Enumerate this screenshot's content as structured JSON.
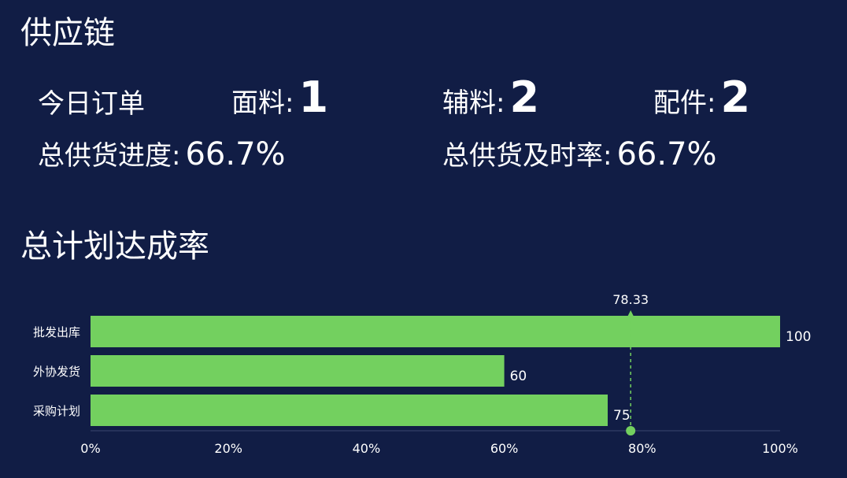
{
  "header": {
    "title": "供应链"
  },
  "orders": {
    "label": "今日订单",
    "fabric_label": "面料:",
    "fabric_value": "1",
    "accessory_label": "辅料:",
    "accessory_value": "2",
    "parts_label": "配件:",
    "parts_value": "2"
  },
  "progress": {
    "supply_label": "总供货进度:",
    "supply_value": "66.7%",
    "ontime_label": "总供货及时率:",
    "ontime_value": "66.7%"
  },
  "section2": {
    "title": "总计划达成率"
  },
  "chart_data": {
    "type": "bar",
    "orientation": "horizontal",
    "title": "",
    "categories": [
      "批发出库",
      "外协发货",
      "采购计划"
    ],
    "values": [
      100,
      60,
      75
    ],
    "xlim": [
      0,
      100
    ],
    "x_ticks": [
      "0%",
      "20%",
      "40%",
      "60%",
      "80%",
      "100%"
    ],
    "mark_line": {
      "value": 78.33,
      "label": "78.33"
    },
    "grid": false,
    "colors": {
      "bar": "#73d05f",
      "text": "#ffffff",
      "axis": "#3a4670"
    }
  }
}
